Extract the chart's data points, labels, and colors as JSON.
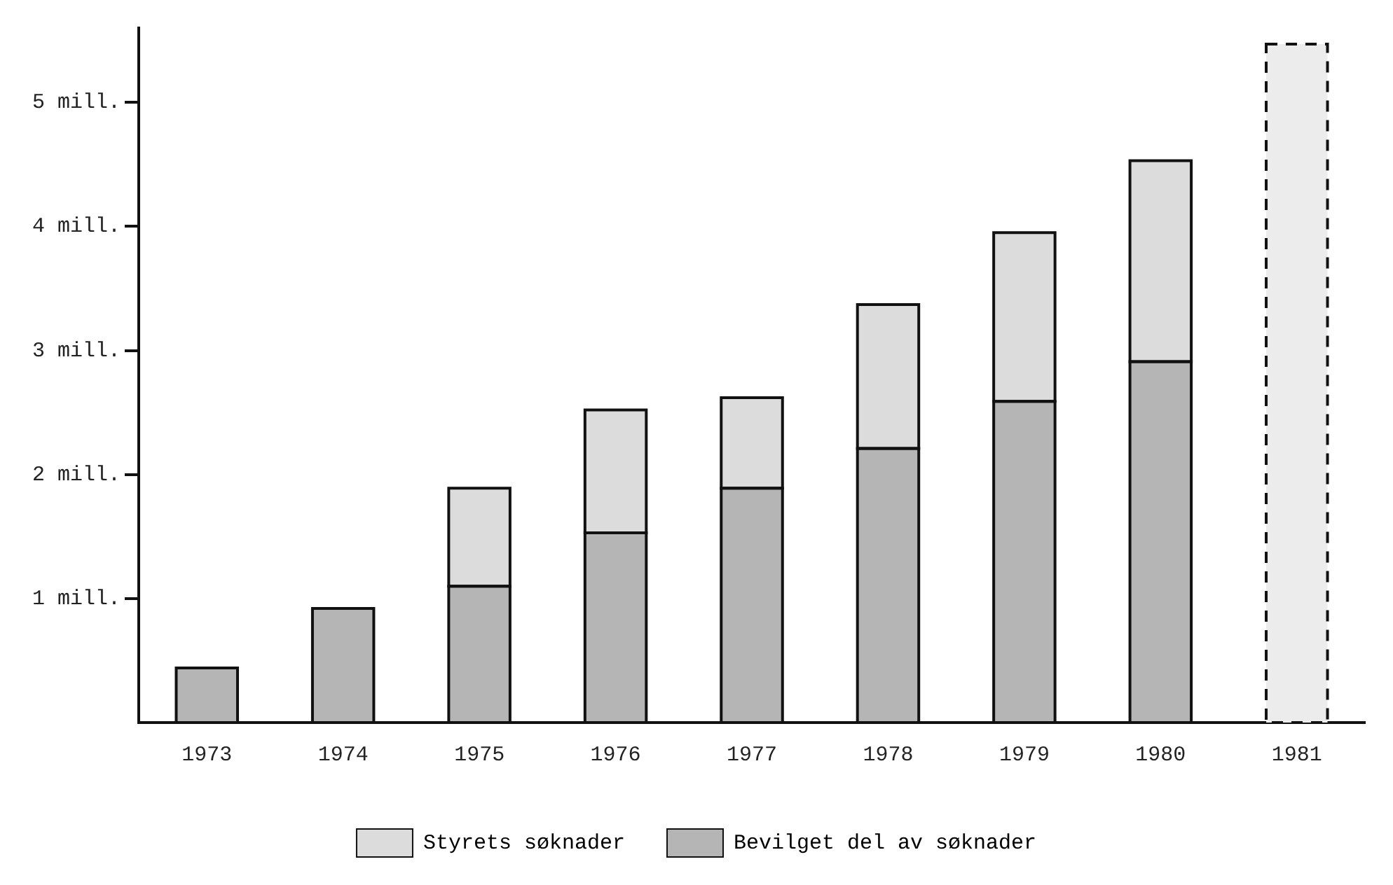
{
  "chart_data": {
    "type": "bar",
    "stacked": true,
    "categories": [
      "1973",
      "1974",
      "1975",
      "1976",
      "1977",
      "1978",
      "1979",
      "1980",
      "1981"
    ],
    "series": [
      {
        "name": "Bevilget del av søknader",
        "color": "#b5b5b5",
        "values": [
          0.44,
          0.92,
          1.1,
          1.53,
          1.89,
          2.21,
          2.59,
          2.91,
          null
        ]
      },
      {
        "name": "Styrets søknader",
        "color": "#dcdcdc",
        "values": [
          null,
          null,
          0.79,
          0.99,
          0.73,
          1.16,
          1.36,
          1.62,
          null
        ]
      },
      {
        "color": "#ececec",
        "line_style": "dashed",
        "values": [
          null,
          null,
          null,
          null,
          null,
          null,
          null,
          null,
          5.47
        ]
      }
    ],
    "ylim": [
      0,
      5.6
    ],
    "yticks": [
      {
        "value": 1,
        "label": "1 mill."
      },
      {
        "value": 2,
        "label": "2 mill."
      },
      {
        "value": 3,
        "label": "3 mill."
      },
      {
        "value": 4,
        "label": "4 mill."
      },
      {
        "value": 5,
        "label": "5 mill."
      }
    ],
    "grid": false,
    "legend": "bottom"
  }
}
